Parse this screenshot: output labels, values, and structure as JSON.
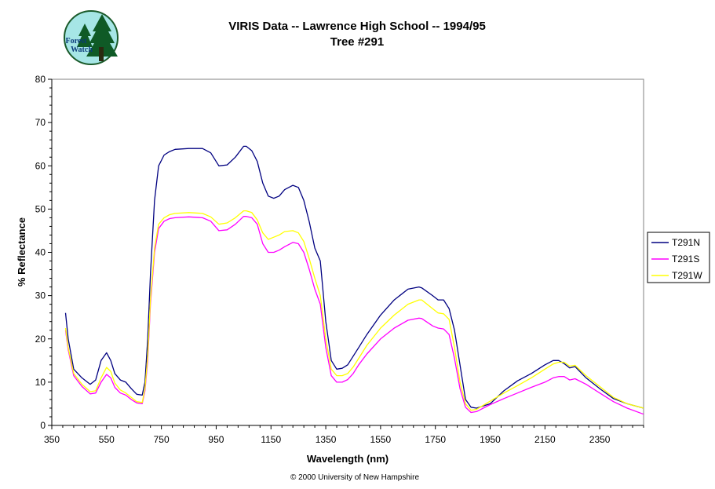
{
  "logo": {
    "line1": "Forest",
    "line2": "Watch"
  },
  "credit": "© 2000 University of New Hampshire",
  "chart_data": {
    "type": "line",
    "title": "VIRIS Data -- Lawrence High School -- 1994/95",
    "subtitle": "Tree #291",
    "xlabel": "Wavelength (nm)",
    "ylabel": "% Reflectance",
    "xlim": [
      350,
      2510
    ],
    "ylim": [
      0,
      80
    ],
    "x_ticks": [
      350,
      550,
      750,
      950,
      1150,
      1350,
      1550,
      1750,
      1950,
      2150,
      2350
    ],
    "y_ticks": [
      0,
      10,
      20,
      30,
      40,
      50,
      60,
      70,
      80
    ],
    "grid": false,
    "legend_position": "right",
    "series": [
      {
        "name": "T291N",
        "color": "#000080",
        "x": [
          400,
          410,
          430,
          460,
          490,
          510,
          530,
          550,
          565,
          580,
          600,
          620,
          640,
          660,
          680,
          690,
          700,
          710,
          725,
          740,
          760,
          780,
          800,
          850,
          900,
          930,
          960,
          990,
          1020,
          1050,
          1060,
          1080,
          1100,
          1120,
          1140,
          1160,
          1180,
          1200,
          1230,
          1250,
          1270,
          1290,
          1310,
          1330,
          1350,
          1370,
          1390,
          1410,
          1430,
          1450,
          1470,
          1500,
          1550,
          1600,
          1650,
          1690,
          1700,
          1740,
          1760,
          1780,
          1800,
          1820,
          1840,
          1860,
          1880,
          1900,
          1950,
          2000,
          2050,
          2100,
          2150,
          2180,
          2200,
          2220,
          2240,
          2260,
          2300,
          2350,
          2400,
          2450,
          2510
        ],
        "y": [
          26,
          20,
          13,
          11,
          9.5,
          10.5,
          15,
          16.8,
          15,
          12,
          10.5,
          10,
          8.5,
          7.2,
          7,
          10,
          20,
          35,
          52,
          60,
          62.5,
          63.3,
          63.8,
          64,
          64,
          63,
          60,
          60.2,
          62,
          64.5,
          64.5,
          63.5,
          61,
          56,
          53,
          52.5,
          53,
          54.5,
          55.5,
          55,
          52,
          47,
          41,
          38,
          24,
          15,
          13,
          13.2,
          14,
          16,
          18,
          21,
          25.5,
          29,
          31.5,
          32,
          31.8,
          30,
          29,
          29,
          27,
          22,
          14,
          6,
          4.2,
          4,
          5,
          8,
          10.3,
          12,
          14,
          15,
          15,
          14.3,
          13.3,
          13.6,
          11,
          8.5,
          6.2,
          5,
          4
        ]
      },
      {
        "name": "T291S",
        "color": "#ff00ff",
        "x": [
          400,
          410,
          430,
          460,
          490,
          510,
          530,
          550,
          565,
          580,
          600,
          620,
          640,
          660,
          680,
          690,
          700,
          710,
          725,
          740,
          760,
          780,
          800,
          850,
          900,
          930,
          960,
          990,
          1020,
          1050,
          1060,
          1080,
          1100,
          1120,
          1140,
          1160,
          1180,
          1200,
          1230,
          1250,
          1270,
          1290,
          1310,
          1330,
          1350,
          1370,
          1390,
          1410,
          1430,
          1450,
          1470,
          1500,
          1550,
          1600,
          1650,
          1690,
          1700,
          1740,
          1760,
          1780,
          1800,
          1820,
          1840,
          1860,
          1880,
          1900,
          1950,
          2000,
          2050,
          2100,
          2150,
          2180,
          2200,
          2220,
          2240,
          2260,
          2300,
          2350,
          2400,
          2450,
          2510
        ],
        "y": [
          22,
          17.5,
          11.5,
          9,
          7.3,
          7.5,
          10,
          11.8,
          11,
          8.8,
          7.5,
          7,
          6,
          5.2,
          5,
          8,
          15,
          28,
          40,
          45.5,
          47.2,
          47.8,
          48,
          48.2,
          48,
          47.2,
          45,
          45.2,
          46.5,
          48.3,
          48.3,
          48,
          46.5,
          42,
          40,
          40,
          40.5,
          41.3,
          42.3,
          42,
          40,
          36,
          31.5,
          28,
          18,
          11.5,
          10,
          10,
          10.6,
          12,
          14,
          16.5,
          20,
          22.5,
          24.3,
          24.8,
          24.7,
          23,
          22.5,
          22.3,
          21,
          15.5,
          8.5,
          4.2,
          3,
          3.2,
          4.8,
          6.2,
          7.5,
          8.8,
          10,
          11,
          11.3,
          11.3,
          10.5,
          10.8,
          9.5,
          7.5,
          5.5,
          4,
          2.6
        ]
      },
      {
        "name": "T291W",
        "color": "#ffff00",
        "x": [
          400,
          410,
          430,
          460,
          490,
          510,
          530,
          550,
          565,
          580,
          600,
          620,
          640,
          660,
          680,
          690,
          700,
          710,
          725,
          740,
          760,
          780,
          800,
          850,
          900,
          930,
          960,
          990,
          1020,
          1050,
          1060,
          1080,
          1100,
          1120,
          1140,
          1160,
          1180,
          1200,
          1230,
          1250,
          1270,
          1290,
          1310,
          1330,
          1350,
          1370,
          1390,
          1410,
          1430,
          1450,
          1470,
          1500,
          1550,
          1600,
          1650,
          1690,
          1700,
          1740,
          1760,
          1780,
          1800,
          1820,
          1840,
          1860,
          1880,
          1900,
          1950,
          2000,
          2050,
          2100,
          2150,
          2180,
          2200,
          2220,
          2240,
          2260,
          2300,
          2350,
          2400,
          2450,
          2510
        ],
        "y": [
          22.5,
          18,
          12,
          9.5,
          7.8,
          8,
          11,
          13.4,
          12.5,
          9.8,
          8.2,
          7.5,
          6.5,
          5.5,
          5.3,
          8.5,
          16,
          29,
          41,
          46.5,
          48,
          48.7,
          49,
          49.2,
          49,
          48.2,
          46.5,
          46.8,
          48,
          49.6,
          49.6,
          49.2,
          47.5,
          44.5,
          43,
          43.5,
          44,
          44.8,
          45,
          44.5,
          42.5,
          38.5,
          34,
          30,
          20,
          13,
          11.5,
          11.5,
          12,
          13.5,
          15.5,
          18.5,
          22.5,
          25.5,
          28,
          29,
          29,
          27,
          26,
          25.8,
          24.5,
          18,
          10,
          5,
          3.5,
          3.7,
          5.6,
          7.5,
          9.2,
          11,
          13,
          14.2,
          14.6,
          14.6,
          13.7,
          13.9,
          11.5,
          9,
          6.5,
          5,
          4
        ]
      }
    ]
  }
}
